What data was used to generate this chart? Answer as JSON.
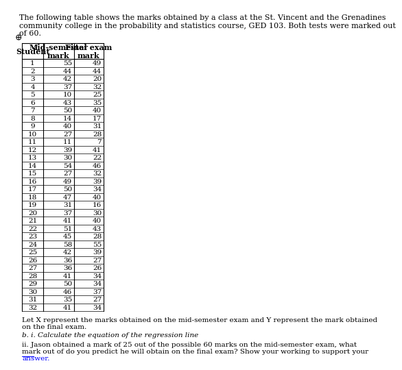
{
  "title_text": "The following table shows the marks obtained by a class at the St. Vincent and the Grenadines\ncommunity college in the probability and statistics course, GED 103. Both tests were marked out\nof 60.",
  "col_headers": [
    "Student",
    "Mid-semester\nmark",
    "Final exam\nmark"
  ],
  "students": [
    1,
    2,
    3,
    4,
    5,
    6,
    7,
    8,
    9,
    10,
    11,
    12,
    13,
    14,
    15,
    16,
    17,
    18,
    19,
    20,
    21,
    22,
    23,
    24,
    25,
    26,
    27,
    28,
    29,
    30,
    31,
    32
  ],
  "mid_sem": [
    55,
    44,
    42,
    37,
    10,
    43,
    50,
    14,
    40,
    27,
    11,
    39,
    30,
    54,
    27,
    49,
    50,
    47,
    31,
    37,
    41,
    51,
    45,
    58,
    42,
    36,
    36,
    41,
    50,
    46,
    35,
    41
  ],
  "final_exam": [
    49,
    44,
    20,
    32,
    25,
    35,
    40,
    17,
    31,
    28,
    7,
    41,
    22,
    46,
    32,
    39,
    34,
    40,
    16,
    30,
    40,
    43,
    28,
    55,
    39,
    27,
    26,
    34,
    34,
    37,
    27,
    34
  ],
  "footnote1": "Let X represent the marks obtained on the mid-semester exam and Y represent the mark obtained\non the final exam.",
  "footnote2": "b. i. Calculate the equation of the regression line",
  "footnote3": "ii. Jason obtained a mark of 25 out of the possible 60 marks on the mid-semester exam, what\nmark out of do you predict he will obtain on the final exam? Show your working to support your",
  "footnote4": "answer.",
  "bg_color": "#ffffff",
  "font_size": 7.5,
  "header_font_size": 8,
  "title_font_size": 8
}
